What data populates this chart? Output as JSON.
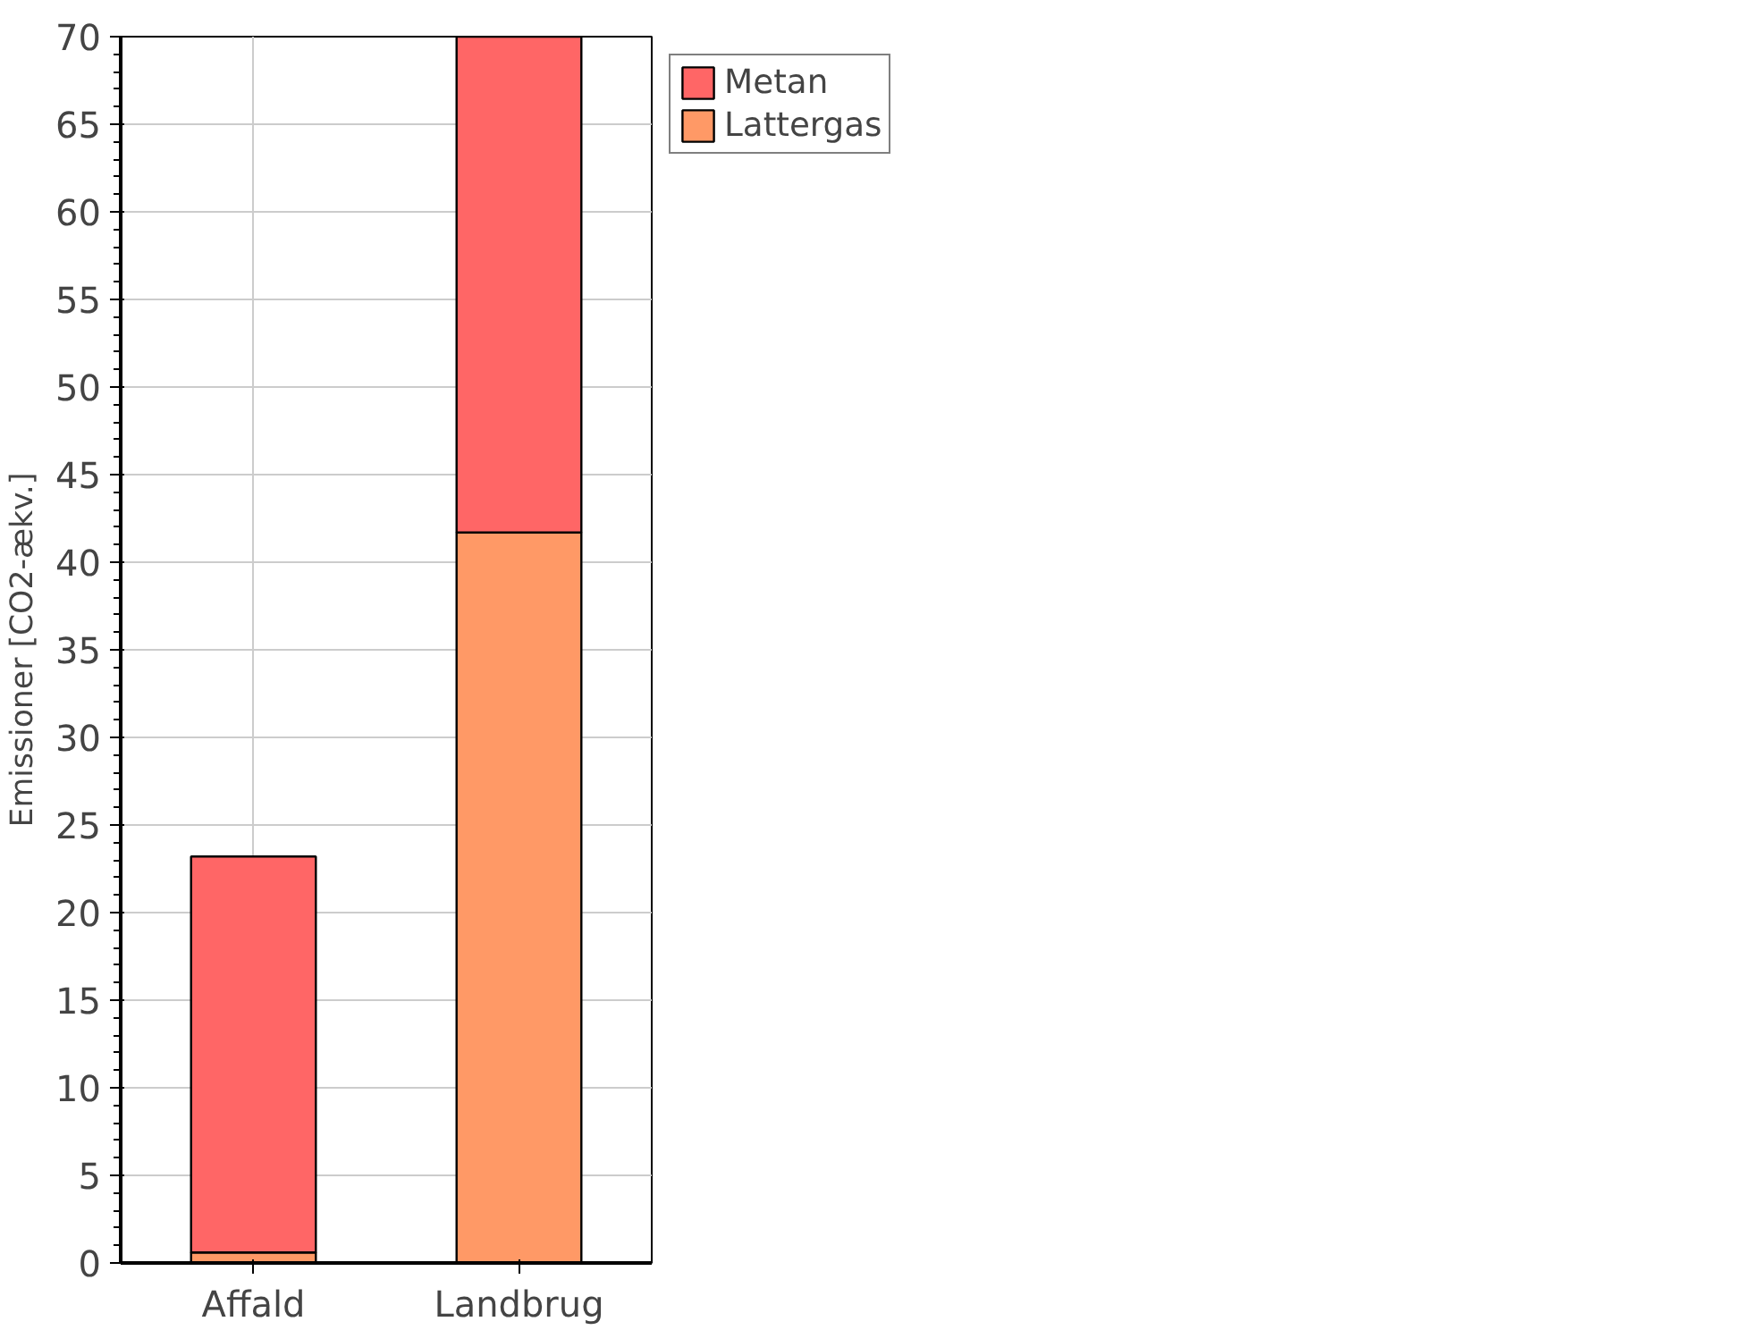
{
  "chart_data": {
    "type": "bar",
    "stacked": true,
    "ylabel": "Emissioner [CO2-ækv.]",
    "categories": [
      "Affald",
      "Landbrug"
    ],
    "series": [
      {
        "name": "Lattergas",
        "color": "#ff9966",
        "values": [
          0.6,
          41.7
        ]
      },
      {
        "name": "Metan",
        "color": "#ff6666",
        "values": [
          22.6,
          28.3
        ]
      }
    ],
    "ylim": [
      0,
      70
    ],
    "yticks": [
      0,
      5,
      10,
      15,
      20,
      25,
      30,
      35,
      40,
      45,
      50,
      55,
      60,
      65,
      70
    ],
    "grid": true,
    "legend": "top right"
  }
}
